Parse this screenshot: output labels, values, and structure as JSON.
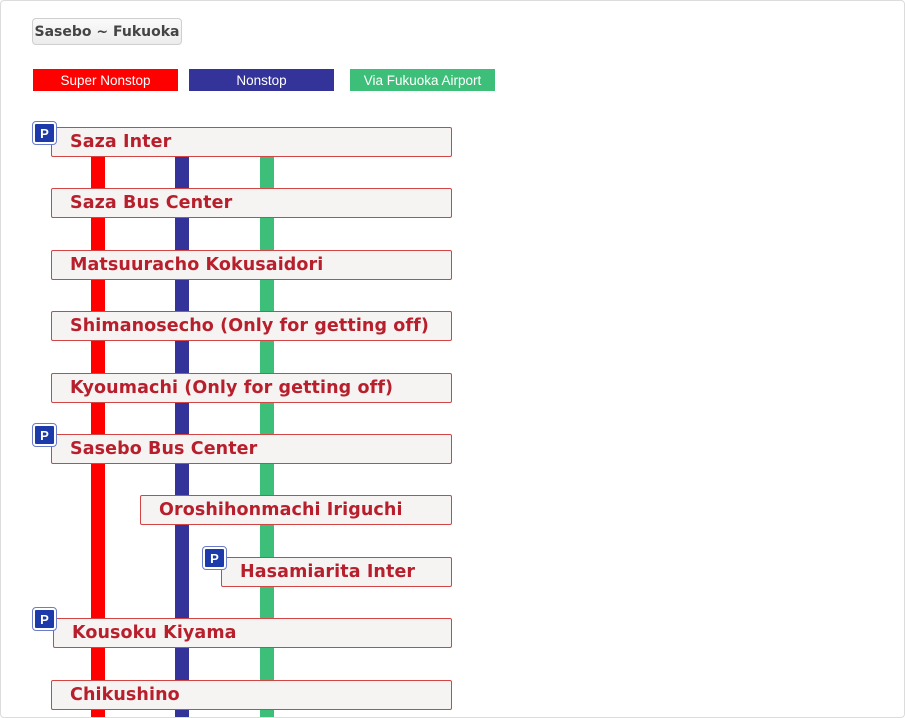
{
  "tab": {
    "label": "Sasebo ~ Fukuoka"
  },
  "legend": [
    {
      "label": "Super  Nonstop",
      "color": "#ff0000"
    },
    {
      "label": "Nonstop",
      "color": "#333399"
    },
    {
      "label": "Via Fukuoka Airport",
      "color": "#3dbf7a"
    }
  ],
  "stops": [
    {
      "name": "Saza Inter",
      "parking": true
    },
    {
      "name": "Saza Bus Center",
      "parking": false
    },
    {
      "name": "Matsuuracho Kokusaidori",
      "parking": false
    },
    {
      "name": "Shimanosecho (Only for getting off)",
      "parking": false
    },
    {
      "name": "Kyoumachi  (Only for getting off)",
      "parking": false
    },
    {
      "name": "Sasebo Bus Center",
      "parking": true
    },
    {
      "name": "Oroshihonmachi Iriguchi",
      "parking": false
    },
    {
      "name": "Hasamiarita Inter",
      "parking": true
    },
    {
      "name": "Kousoku Kiyama",
      "parking": true
    },
    {
      "name": "Chikushino",
      "parking": false
    }
  ],
  "parking_icon_label": "P"
}
